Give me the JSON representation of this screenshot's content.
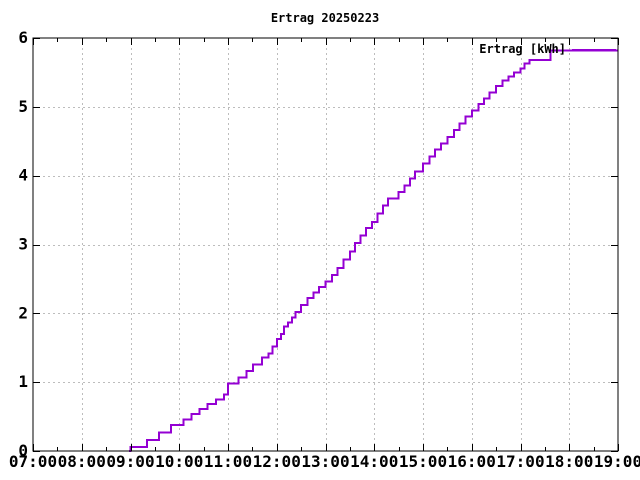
{
  "window": {
    "background": "#ffffff"
  },
  "chart_data": {
    "type": "line",
    "line_style": "steps",
    "title": "Ertrag 20250223",
    "xlabel": "",
    "ylabel": "",
    "grid": true,
    "legend_position": "top-right-inside",
    "x_axis": {
      "tick_labels": [
        "07:00",
        "08:00",
        "09:00",
        "10:00",
        "11:00",
        "12:00",
        "13:00",
        "14:00",
        "15:00",
        "16:00",
        "17:00",
        "18:00",
        "19:00"
      ],
      "minor_tick_interval_minutes": 30,
      "range": [
        "07:00",
        "19:00"
      ]
    },
    "y_axis": {
      "tick_labels": [
        "0",
        "1",
        "2",
        "3",
        "4",
        "5",
        "6"
      ],
      "range": [
        0,
        6
      ]
    },
    "series": [
      {
        "name": "Ertrag [kWh]",
        "color": "#9400d3",
        "points": [
          [
            "08:58",
            0.0
          ],
          [
            "09:00",
            0.06
          ],
          [
            "09:20",
            0.16
          ],
          [
            "09:35",
            0.27
          ],
          [
            "09:50",
            0.38
          ],
          [
            "10:05",
            0.46
          ],
          [
            "10:15",
            0.54
          ],
          [
            "10:25",
            0.61
          ],
          [
            "10:35",
            0.68
          ],
          [
            "10:45",
            0.75
          ],
          [
            "10:55",
            0.82
          ],
          [
            "11:00",
            0.98
          ],
          [
            "11:13",
            1.07
          ],
          [
            "11:23",
            1.16
          ],
          [
            "11:31",
            1.26
          ],
          [
            "11:42",
            1.36
          ],
          [
            "11:50",
            1.42
          ],
          [
            "11:55",
            1.52
          ],
          [
            "12:00",
            1.63
          ],
          [
            "12:05",
            1.7
          ],
          [
            "12:09",
            1.81
          ],
          [
            "12:14",
            1.87
          ],
          [
            "12:19",
            1.94
          ],
          [
            "12:23",
            2.02
          ],
          [
            "12:30",
            2.12
          ],
          [
            "12:38",
            2.22
          ],
          [
            "12:45",
            2.3
          ],
          [
            "12:52",
            2.38
          ],
          [
            "13:00",
            2.46
          ],
          [
            "13:08",
            2.56
          ],
          [
            "13:15",
            2.66
          ],
          [
            "13:22",
            2.78
          ],
          [
            "13:30",
            2.9
          ],
          [
            "13:36",
            3.02
          ],
          [
            "13:43",
            3.13
          ],
          [
            "13:50",
            3.24
          ],
          [
            "13:57",
            3.33
          ],
          [
            "14:04",
            3.45
          ],
          [
            "14:11",
            3.57
          ],
          [
            "14:17",
            3.67
          ],
          [
            "14:30",
            3.76
          ],
          [
            "14:37",
            3.86
          ],
          [
            "14:44",
            3.96
          ],
          [
            "14:50",
            4.06
          ],
          [
            "15:00",
            4.18
          ],
          [
            "15:08",
            4.28
          ],
          [
            "15:15",
            4.38
          ],
          [
            "15:22",
            4.47
          ],
          [
            "15:30",
            4.56
          ],
          [
            "15:38",
            4.66
          ],
          [
            "15:45",
            4.76
          ],
          [
            "15:52",
            4.86
          ],
          [
            "16:00",
            4.95
          ],
          [
            "16:08",
            5.04
          ],
          [
            "16:15",
            5.12
          ],
          [
            "16:22",
            5.21
          ],
          [
            "16:30",
            5.3
          ],
          [
            "16:38",
            5.38
          ],
          [
            "16:45",
            5.44
          ],
          [
            "16:52",
            5.5
          ],
          [
            "17:00",
            5.56
          ],
          [
            "17:05",
            5.63
          ],
          [
            "17:11",
            5.68
          ],
          [
            "17:37",
            5.82
          ],
          [
            "19:00",
            5.82
          ]
        ]
      }
    ]
  },
  "colors": {
    "background": "#ffffff",
    "border": "#000000",
    "grid": "#bdbdbd",
    "text": "#000000",
    "curve": "#9400d3"
  }
}
